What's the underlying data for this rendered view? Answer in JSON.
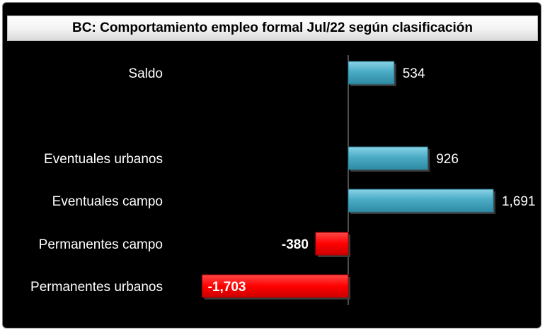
{
  "chart_data": {
    "type": "bar",
    "orientation": "horizontal",
    "title": "BC: Comportamiento empleo formal Jul/22  según clasificación",
    "categories": [
      "Saldo",
      "Eventuales urbanos",
      "Eventuales campo",
      "Permanentes campo",
      "Permanentes urbanos"
    ],
    "values": [
      534,
      926,
      1691,
      -380,
      -1703
    ],
    "value_labels": [
      "534",
      "926",
      "1,691",
      "-380",
      "-1,703"
    ],
    "xlim": [
      -1703,
      1691
    ],
    "grid": false,
    "legend": "none",
    "colors": {
      "positive": "#4bacc6",
      "negative": "#ff0000",
      "background": "#000000",
      "text": "#ffffff"
    }
  }
}
